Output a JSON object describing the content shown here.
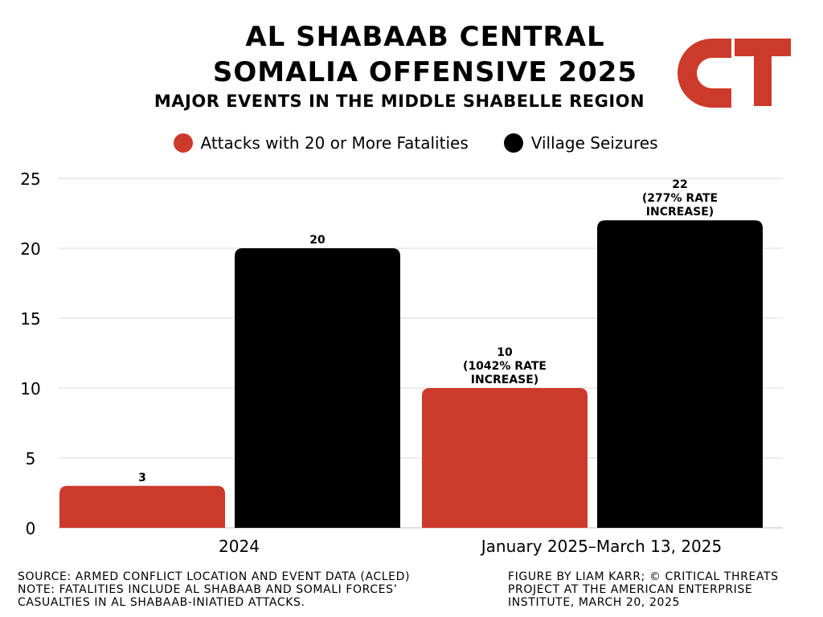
{
  "header": {
    "title_line1": "AL SHABAAB CENTRAL",
    "title_line2": "SOMALIA OFFENSIVE 2025",
    "subtitle": "MAJOR EVENTS IN THE MIDDLE SHABELLE REGION",
    "logo_text": "CT"
  },
  "colors": {
    "attacks": "#cc3a2b",
    "seizures": "#000000",
    "grid": "#d9d9d9",
    "logo": "#cc3a2b"
  },
  "legend": [
    {
      "label": "Attacks with 20 or More Fatalities",
      "color_key": "attacks"
    },
    {
      "label": "Village Seizures",
      "color_key": "seizures"
    }
  ],
  "chart_data": {
    "type": "bar",
    "categories": [
      "2024",
      "January 2025–March 13, 2025"
    ],
    "series": [
      {
        "name": "Attacks with 20 or More Fatalities",
        "values": [
          3,
          10
        ],
        "labels": [
          [
            "3"
          ],
          [
            "10",
            "(1042% RATE",
            "INCREASE)"
          ]
        ]
      },
      {
        "name": "Village Seizures",
        "values": [
          20,
          22
        ],
        "labels": [
          [
            "20"
          ],
          [
            "22",
            "(277% RATE",
            "INCREASE)"
          ]
        ]
      }
    ],
    "ylim": [
      0,
      25
    ],
    "yticks": [
      0,
      5,
      10,
      15,
      20,
      25
    ],
    "grid": true,
    "legend_position": "top"
  },
  "footer": {
    "left": [
      "SOURCE: ARMED CONFLICT LOCATION AND EVENT DATA (ACLED)",
      "NOTE: FATALITIES INCLUDE AL SHABAAB AND SOMALI FORCES’",
      "CASUALTIES IN AL SHABAAB-INIATIED ATTACKS."
    ],
    "right": [
      "FIGURE BY LIAM KARR; © CRITICAL THREATS",
      "PROJECT AT THE AMERICAN ENTERPRISE",
      "INSTITUTE, MARCH 20, 2025"
    ]
  }
}
